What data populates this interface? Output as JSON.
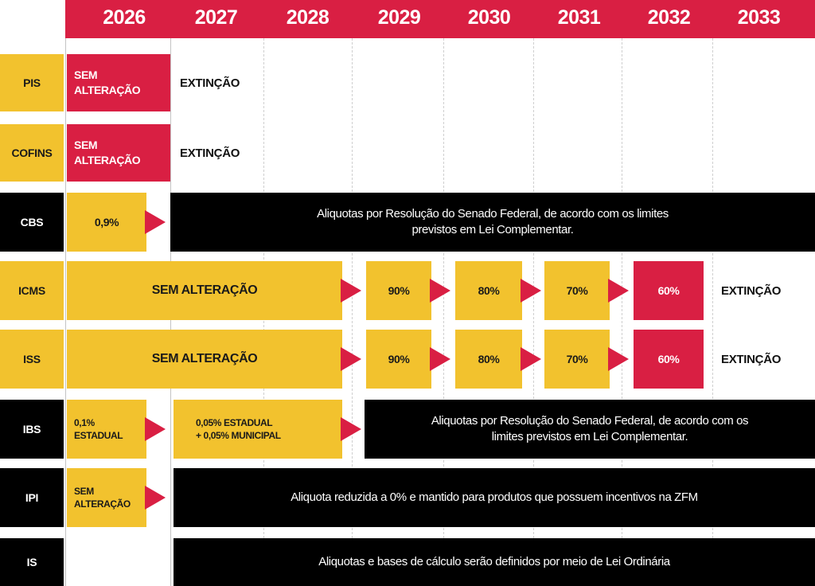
{
  "years": [
    "2026",
    "2027",
    "2028",
    "2029",
    "2030",
    "2031",
    "2032",
    "2033"
  ],
  "colors": {
    "red": "#d91f43",
    "yellow": "#f2c22e",
    "black": "#000000"
  },
  "rows": {
    "pis": {
      "label": "PIS",
      "y2026_l1": "SEM",
      "y2026_l2": "ALTERAÇÃO",
      "y2027": "EXTINÇÃO"
    },
    "cofins": {
      "label": "COFINS",
      "y2026_l1": "SEM",
      "y2026_l2": "ALTERAÇÃO",
      "y2027": "EXTINÇÃO"
    },
    "cbs": {
      "label": "CBS",
      "y2026": "0,9%",
      "desc_l1": "Aliquotas por Resolução do Senado Federal, de acordo com os limites",
      "desc_l2": "previstos em Lei Complementar."
    },
    "icms": {
      "label": "ICMS",
      "main": "SEM ALTERAÇÃO",
      "y2029": "90%",
      "y2030": "80%",
      "y2031": "70%",
      "y2032": "60%",
      "y2033": "EXTINÇÃO"
    },
    "iss": {
      "label": "ISS",
      "main": "SEM ALTERAÇÃO",
      "y2029": "90%",
      "y2030": "80%",
      "y2031": "70%",
      "y2032": "60%",
      "y2033": "EXTINÇÃO"
    },
    "ibs": {
      "label": "IBS",
      "y2026_l1": "0,1%",
      "y2026_l2": "ESTADUAL",
      "y2027_l1": "0,05% ESTADUAL",
      "y2027_l2": "+ 0,05% MUNICIPAL",
      "desc_l1": "Aliquotas por Resolução do Senado Federal, de acordo com os",
      "desc_l2": "limites previstos em Lei Complementar."
    },
    "ipi": {
      "label": "IPI",
      "y2026_l1": "SEM",
      "y2026_l2": "ALTERAÇÃO",
      "desc": "Aliquota reduzida a 0% e mantido para produtos que possuem incentivos na ZFM"
    },
    "is": {
      "label": "IS",
      "desc": "Aliquotas e bases de cálculo serão definidos por meio de Lei Ordinária"
    }
  }
}
